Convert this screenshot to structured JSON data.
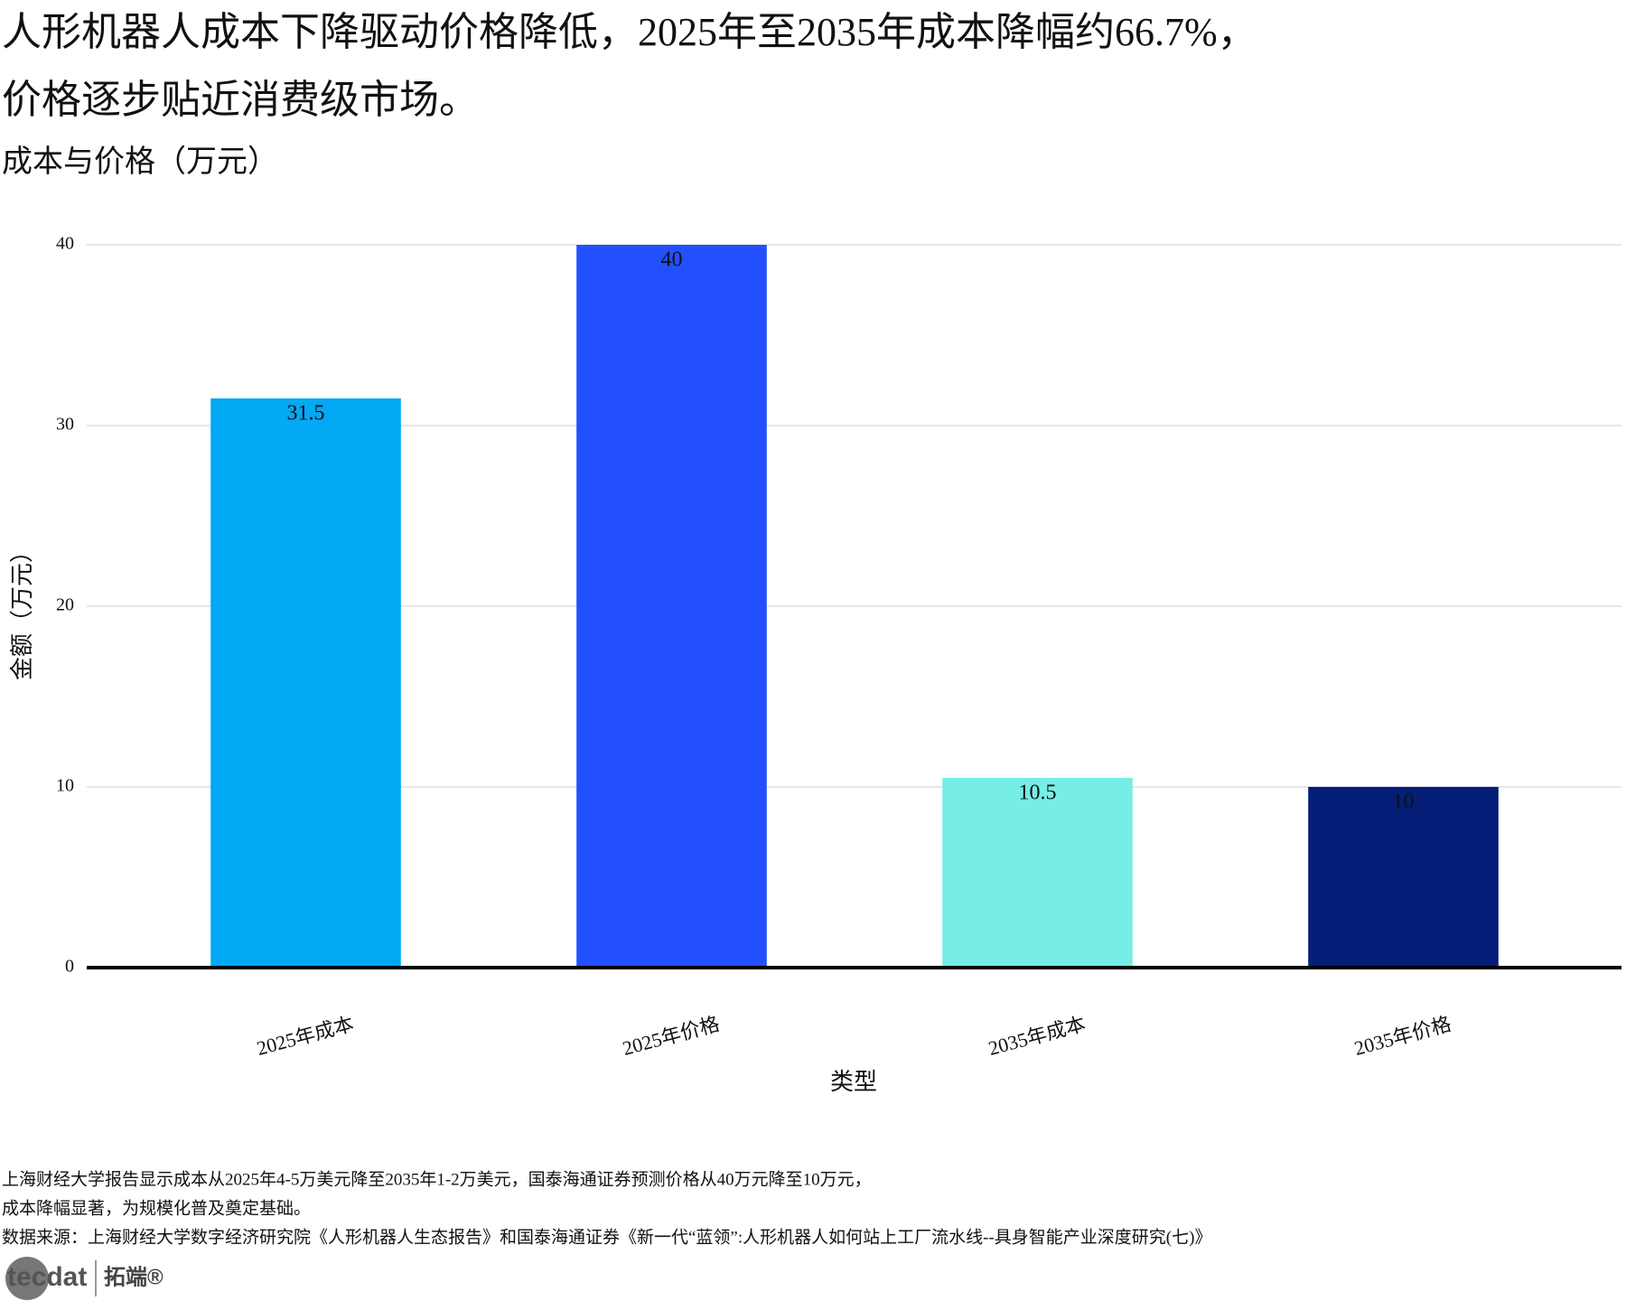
{
  "chart_data": {
    "type": "bar",
    "title": [
      "人形机器人成本下降驱动价格降低，2025年至2035年成本降幅约66.7%，",
      "价格逐步贴近消费级市场。"
    ],
    "subtitle": "成本与价格（万元）",
    "x_label": "类型",
    "y_label": "金额（万元）",
    "categories": [
      "2025年成本",
      "2025年价格",
      "2035年成本",
      "2035年价格"
    ],
    "values": [
      31.5,
      40,
      10.5,
      10
    ],
    "colors": [
      "#03a9f4",
      "#2250ff",
      "#77eee5",
      "#041e78"
    ],
    "ylim": [
      0,
      40
    ],
    "yticks": [
      0,
      10,
      20,
      30,
      40
    ],
    "grid": true
  },
  "notes": [
    "上海财经大学报告显示成本从2025年4-5万美元降至2035年1-2万美元，国泰海通证券预测价格从40万元降至10万元，",
    "成本降幅显著，为规模化普及奠定基础。",
    "数据来源：上海财经大学数字经济研究院《人形机器人生态报告》和国泰海通证券《新一代“蓝领”:人形机器人如何站上工厂流水线--具身智能产业深度研究(七)》"
  ],
  "brand": [
    "tecdat",
    "拓端®"
  ]
}
